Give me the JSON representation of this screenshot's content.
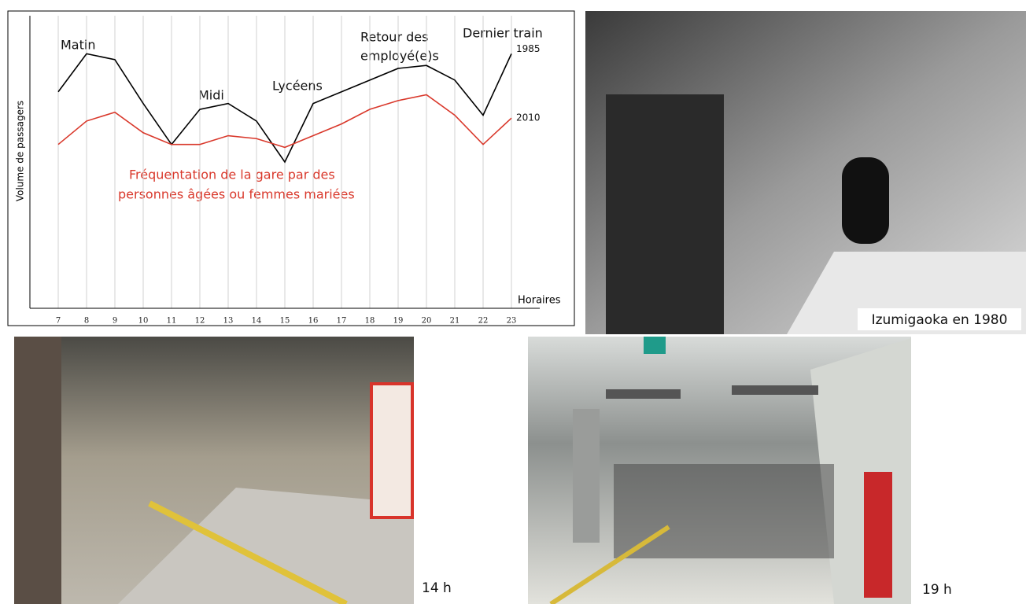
{
  "chart_data": {
    "type": "line",
    "y_label": "Volume de passagers",
    "x_label": "Horaires",
    "annotations": [
      "Matin",
      "Midi",
      "Lycéens",
      "Retour des",
      "employé(e)s",
      "Dernier train",
      "Fréquentation de la gare par des",
      "personnes âgées ou femmes mariées"
    ],
    "x": [
      7,
      8,
      9,
      10,
      11,
      12,
      13,
      14,
      15,
      16,
      17,
      18,
      19,
      20,
      21,
      22,
      23
    ],
    "series": [
      {
        "name": "1985",
        "color": "#000000",
        "values": [
          74,
          87,
          85,
          70,
          56,
          68,
          70,
          64,
          50,
          70,
          74,
          78,
          82,
          83,
          78,
          66,
          87
        ]
      },
      {
        "name": "2010",
        "color": "#d9382b",
        "values": [
          56,
          64,
          67,
          60,
          56,
          56,
          59,
          58,
          55,
          59,
          63,
          68,
          71,
          73,
          66,
          56,
          65
        ]
      }
    ],
    "xlim": [
      6,
      24
    ],
    "xticks": [
      7,
      8,
      9,
      10,
      11,
      12,
      13,
      14,
      15,
      16,
      17,
      18,
      19,
      20,
      21,
      22,
      23
    ],
    "ylim": [
      0,
      100
    ],
    "grid": true
  },
  "photos": {
    "top_right": {
      "caption": "Izumigaoka en 1980"
    },
    "bottom_left": {
      "caption": "14 h"
    },
    "bottom_right": {
      "caption": "19 h"
    }
  }
}
